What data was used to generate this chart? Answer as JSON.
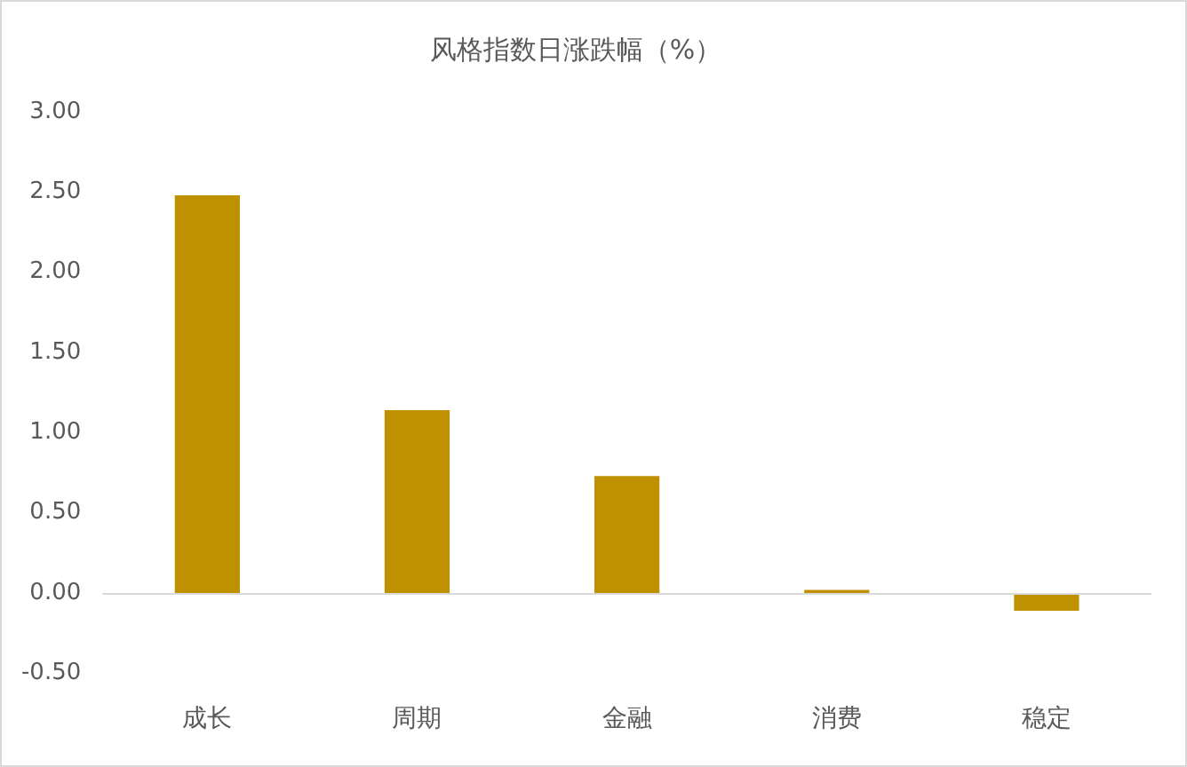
{
  "chart_data": {
    "type": "bar",
    "title": "风格指数日涨跌幅（%）",
    "categories": [
      "成长",
      "周期",
      "金融",
      "消费",
      "稳定"
    ],
    "values": [
      2.48,
      1.14,
      0.73,
      0.02,
      -0.11
    ],
    "color": "#bf9000",
    "ylim": [
      -0.5,
      3
    ],
    "yticks": [
      {
        "value": -0.5,
        "label": "-0.50"
      },
      {
        "value": 0,
        "label": "0.00"
      },
      {
        "value": 0.5,
        "label": "0.50"
      },
      {
        "value": 1,
        "label": "1.00"
      },
      {
        "value": 1.5,
        "label": "1.50"
      },
      {
        "value": 2,
        "label": "2.00"
      },
      {
        "value": 2.5,
        "label": "2.50"
      },
      {
        "value": 3,
        "label": "3.00"
      }
    ]
  }
}
